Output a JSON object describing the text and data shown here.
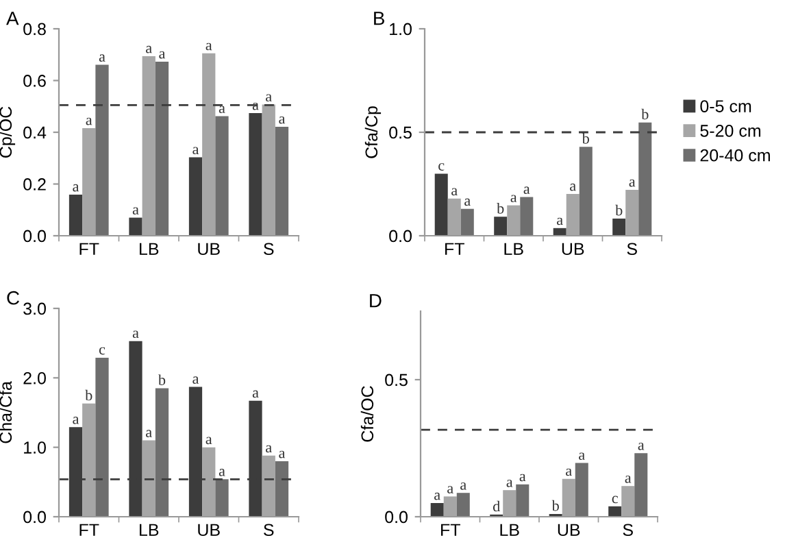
{
  "chart_data": [
    {
      "type": "bar",
      "title": "A",
      "ylabel": "Cp/OC",
      "categories": [
        "FT",
        "LB",
        "UB",
        "S"
      ],
      "series": [
        {
          "color": "#3c3c3c",
          "values": [
            0.159,
            0.07,
            0.303,
            0.474
          ],
          "value_labels": [
            "a",
            "a",
            "a",
            "a"
          ]
        },
        {
          "color": "#a6a6a6",
          "values": [
            0.416,
            0.694,
            0.705,
            0.507
          ],
          "value_labels": [
            "a",
            "a",
            "a",
            "a"
          ]
        },
        {
          "color": "#6e6e6e",
          "values": [
            0.661,
            0.673,
            0.462,
            0.421
          ],
          "value_labels": [
            "a",
            "a",
            "a",
            "a"
          ]
        }
      ],
      "ylim": [
        0,
        0.8
      ],
      "yticks": [
        {
          "value": 0,
          "label": "0.0"
        },
        {
          "value": 0.2,
          "label": "0.2"
        },
        {
          "value": 0.4,
          "label": "0.4"
        },
        {
          "value": 0.6,
          "label": "0.6"
        },
        {
          "value": 0.8,
          "label": "0.8"
        }
      ],
      "ref_lines": [
        {
          "axis": "y",
          "value": 0.505,
          "color": "#3c3c3c",
          "line_style": "dashed"
        }
      ],
      "grid": false,
      "legend": false
    },
    {
      "type": "bar",
      "title": "B",
      "ylabel": "Cfa/Cp",
      "categories": [
        "FT",
        "LB",
        "UB",
        "S"
      ],
      "series": [
        {
          "name": "0-5 cm",
          "color": "#3c3c3c",
          "values": [
            0.3,
            0.092,
            0.037,
            0.083
          ],
          "value_labels": [
            "c",
            "b",
            "a",
            "b"
          ]
        },
        {
          "name": "5-20 cm",
          "color": "#a6a6a6",
          "values": [
            0.18,
            0.147,
            0.202,
            0.222
          ],
          "value_labels": [
            "a",
            "a",
            "a",
            "a"
          ]
        },
        {
          "name": "20-40 cm",
          "color": "#6e6e6e",
          "values": [
            0.13,
            0.187,
            0.43,
            0.547
          ],
          "value_labels": [
            "a",
            "a",
            "b",
            "b"
          ]
        }
      ],
      "ylim": [
        0,
        1.0
      ],
      "yticks": [
        {
          "value": 0,
          "label": "0.0"
        },
        {
          "value": 0.5,
          "label": "0.5"
        },
        {
          "value": 1.0,
          "label": "1.0"
        }
      ],
      "ref_lines": [
        {
          "axis": "y",
          "value": 0.5,
          "color": "#3c3c3c",
          "line_style": "dashed"
        }
      ],
      "grid": false,
      "legend": "right"
    },
    {
      "type": "bar",
      "title": "C",
      "ylabel": "Cha/Cfa",
      "categories": [
        "FT",
        "LB",
        "UB",
        "S"
      ],
      "series": [
        {
          "color": "#3c3c3c",
          "values": [
            1.29,
            2.53,
            1.87,
            1.67
          ],
          "value_labels": [
            "a",
            "a",
            "a",
            "a"
          ]
        },
        {
          "color": "#a6a6a6",
          "values": [
            1.63,
            1.1,
            1.0,
            0.88
          ],
          "value_labels": [
            "b",
            "a",
            "a",
            "a"
          ]
        },
        {
          "color": "#6e6e6e",
          "values": [
            2.29,
            1.85,
            0.54,
            0.8
          ],
          "value_labels": [
            "c",
            "b",
            "a",
            "a"
          ]
        }
      ],
      "ylim": [
        0,
        3.0
      ],
      "yticks": [
        {
          "value": 0,
          "label": "0.0"
        },
        {
          "value": 1.0,
          "label": "1.0"
        },
        {
          "value": 2.0,
          "label": "2.0"
        },
        {
          "value": 3.0,
          "label": "3.0"
        }
      ],
      "ref_lines": [
        {
          "axis": "y",
          "value": 0.54,
          "color": "#3c3c3c",
          "line_style": "dashed"
        }
      ],
      "grid": false,
      "legend": false
    },
    {
      "type": "bar",
      "title": "D",
      "ylabel": "Cfa/OC",
      "categories": [
        "FT",
        "LB",
        "UB",
        "S"
      ],
      "series": [
        {
          "color": "#3c3c3c",
          "values": [
            0.05,
            0.008,
            0.01,
            0.038
          ],
          "value_labels": [
            "a",
            "d",
            "b",
            "c"
          ]
        },
        {
          "color": "#a6a6a6",
          "values": [
            0.074,
            0.097,
            0.138,
            0.112
          ],
          "value_labels": [
            "a",
            "a",
            "a",
            "a"
          ]
        },
        {
          "color": "#6e6e6e",
          "values": [
            0.087,
            0.118,
            0.196,
            0.232
          ],
          "value_labels": [
            "a",
            "a",
            "a",
            "a"
          ]
        }
      ],
      "ylim": [
        0,
        0.75
      ],
      "yticks": [
        {
          "value": 0,
          "label": "0.0"
        },
        {
          "value": 0.5,
          "label": "0.5"
        }
      ],
      "ref_lines": [
        {
          "axis": "y",
          "value": 0.317,
          "color": "#3c3c3c",
          "line_style": "dashed"
        }
      ],
      "grid": false,
      "legend": false
    }
  ]
}
